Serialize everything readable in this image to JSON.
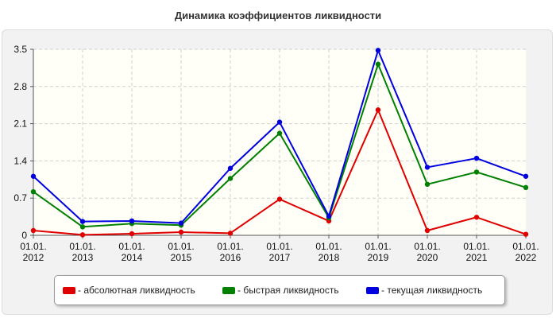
{
  "chart_data": {
    "type": "line",
    "title": "Динамика коэффициентов ликвидности",
    "categories": [
      "01.01.\n2012",
      "01.01.\n2013",
      "01.01.\n2014",
      "01.01.\n2015",
      "01.01.\n2016",
      "01.01.\n2017",
      "01.01.\n2018",
      "01.01.\n2019",
      "01.01.\n2020",
      "01.01.\n2021",
      "01.01.\n2022"
    ],
    "yticks": [
      "0",
      "0.7",
      "1.4",
      "2.1",
      "2.8",
      "3.5"
    ],
    "ylim": [
      0,
      3.5
    ],
    "grid": true,
    "legend_position": "bottom",
    "series": [
      {
        "name": "- абсолютная ликвидность",
        "color": "#e00000",
        "values": [
          0.09,
          0.01,
          0.03,
          0.06,
          0.04,
          0.68,
          0.27,
          2.36,
          0.09,
          0.34,
          0.02
        ]
      },
      {
        "name": "- быстрая ликвидность",
        "color": "#008000",
        "values": [
          0.82,
          0.16,
          0.22,
          0.19,
          1.07,
          1.92,
          0.33,
          3.22,
          0.96,
          1.19,
          0.9
        ]
      },
      {
        "name": "- текущая ликвидность",
        "color": "#0000e0",
        "values": [
          1.11,
          0.26,
          0.27,
          0.23,
          1.26,
          2.13,
          0.36,
          3.48,
          1.28,
          1.45,
          1.11
        ]
      }
    ]
  }
}
